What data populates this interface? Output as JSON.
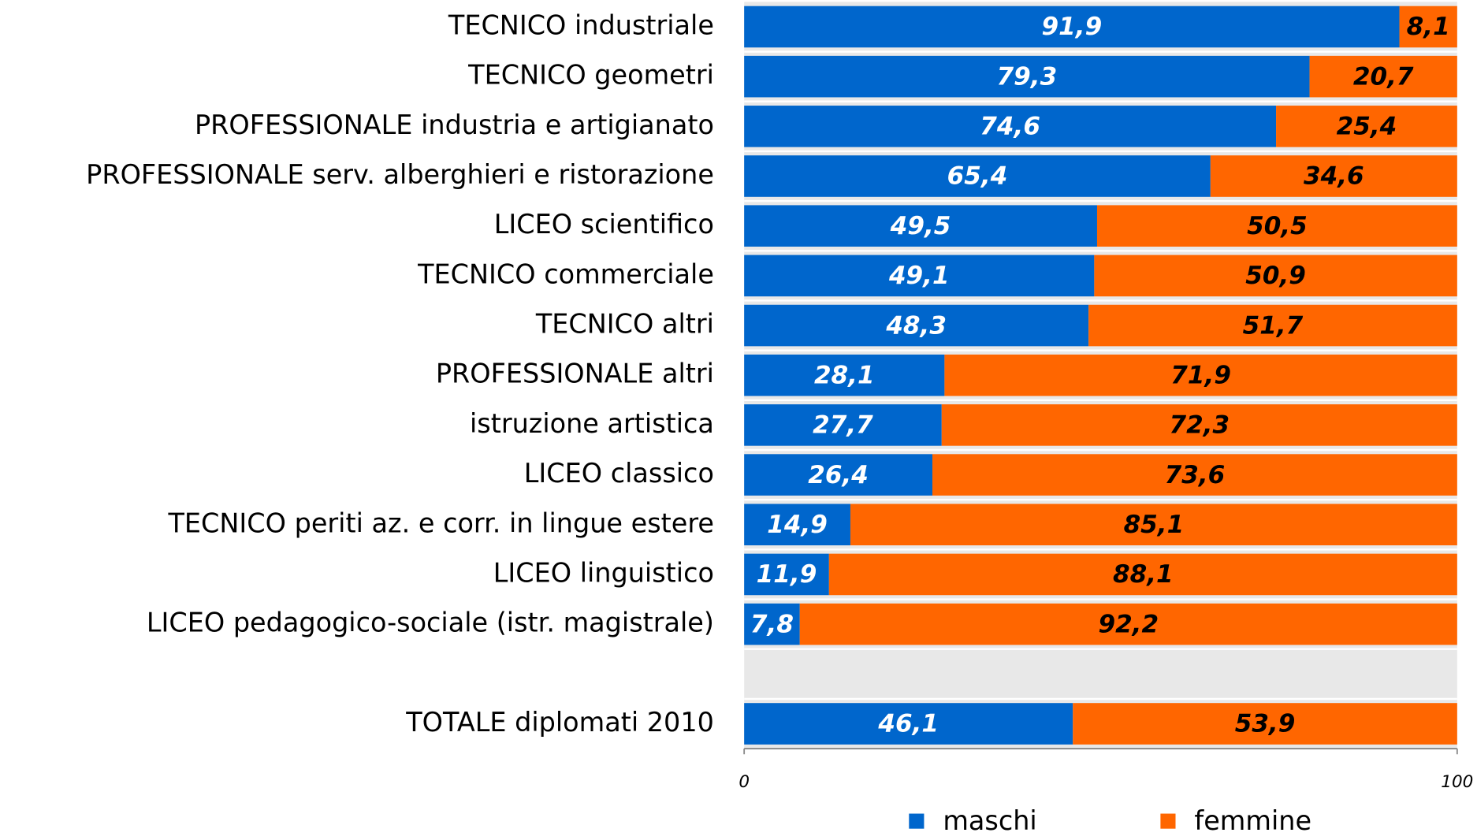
{
  "chart_data": {
    "type": "stacked-bar-horizontal",
    "categories": [
      "TECNICO industriale",
      "TECNICO geometri",
      "PROFESSIONALE industria e artigianato",
      "PROFESSIONALE serv. alberghieri e ristorazione",
      "LICEO scientifico",
      "TECNICO commerciale",
      "TECNICO altri",
      "PROFESSIONALE altri",
      "istruzione artistica",
      "LICEO classico",
      "TECNICO periti az. e corr. in lingue estere",
      "LICEO linguistico",
      "LICEO pedagogico-sociale (istr. magistrale)",
      null,
      "TOTALE diplomati 2010"
    ],
    "series": [
      {
        "name": "maschi",
        "color": "#0066cc",
        "values": [
          91.9,
          79.3,
          74.6,
          65.4,
          49.5,
          49.1,
          48.3,
          28.1,
          27.7,
          26.4,
          14.9,
          11.9,
          7.8,
          null,
          46.1
        ],
        "value_labels": [
          "91,9",
          "79,3",
          "74,6",
          "65,4",
          "49,5",
          "49,1",
          "48,3",
          "28,1",
          "27,7",
          "26,4",
          "14,9",
          "11,9",
          "7,8",
          null,
          "46,1"
        ]
      },
      {
        "name": "femmine",
        "color": "#ff6600",
        "values": [
          8.1,
          20.7,
          25.4,
          34.6,
          50.5,
          50.9,
          51.7,
          71.9,
          72.3,
          73.6,
          85.1,
          88.1,
          92.2,
          null,
          53.9
        ],
        "value_labels": [
          "8,1",
          "20,7",
          "25,4",
          "34,6",
          "50,5",
          "50,9",
          "51,7",
          "71,9",
          "72,3",
          "73,6",
          "85,1",
          "88,1",
          "92,2",
          null,
          "53,9"
        ]
      }
    ],
    "xlim": [
      0,
      100
    ],
    "xticks": [
      0,
      100
    ],
    "legend": "bottom"
  }
}
